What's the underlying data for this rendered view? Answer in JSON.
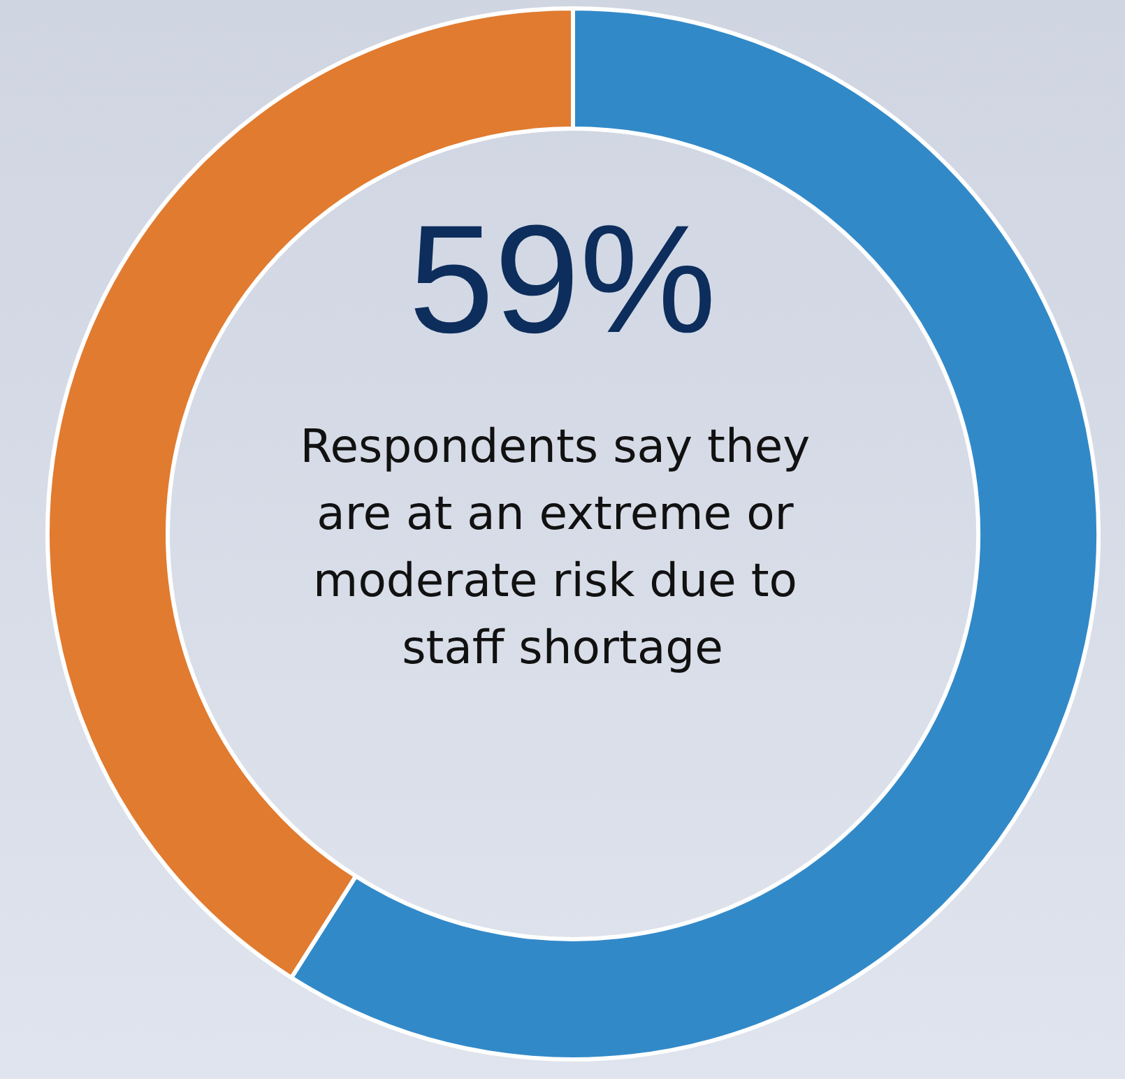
{
  "chart_data": {
    "type": "donut",
    "title": "59%",
    "subtitle": "Respondents say they are at an extreme or moderate risk due to staff shortage",
    "categories": [
      null,
      null
    ],
    "values": [
      59,
      41
    ],
    "colors": [
      "#3289c8",
      "#e07b30"
    ]
  }
}
